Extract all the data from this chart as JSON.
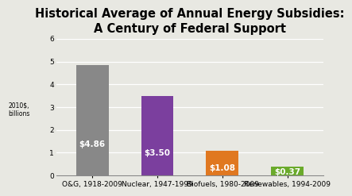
{
  "title": "Historical Average of Annual Energy Subsidies:\nA Century of Federal Support",
  "categories": [
    "O&G, 1918-2009",
    "Nuclear, 1947-1999",
    "Biofuels, 1980-2009",
    "Renewables, 1994-2009"
  ],
  "values": [
    4.86,
    3.5,
    1.08,
    0.37
  ],
  "labels": [
    "$4.86",
    "$3.50",
    "$1.08",
    "$0.37"
  ],
  "bar_colors": [
    "#888888",
    "#7B3F9E",
    "#E07820",
    "#6AAA2A"
  ],
  "ylabel": "2010$,\nbillions",
  "ylim": [
    0,
    6
  ],
  "yticks": [
    0,
    1,
    2,
    3,
    4,
    5,
    6
  ],
  "background_color": "#E8E8E2",
  "title_fontsize": 10.5,
  "label_fontsize": 7.5,
  "tick_fontsize": 6.5,
  "ylabel_fontsize": 5.5,
  "bar_width": 0.5
}
